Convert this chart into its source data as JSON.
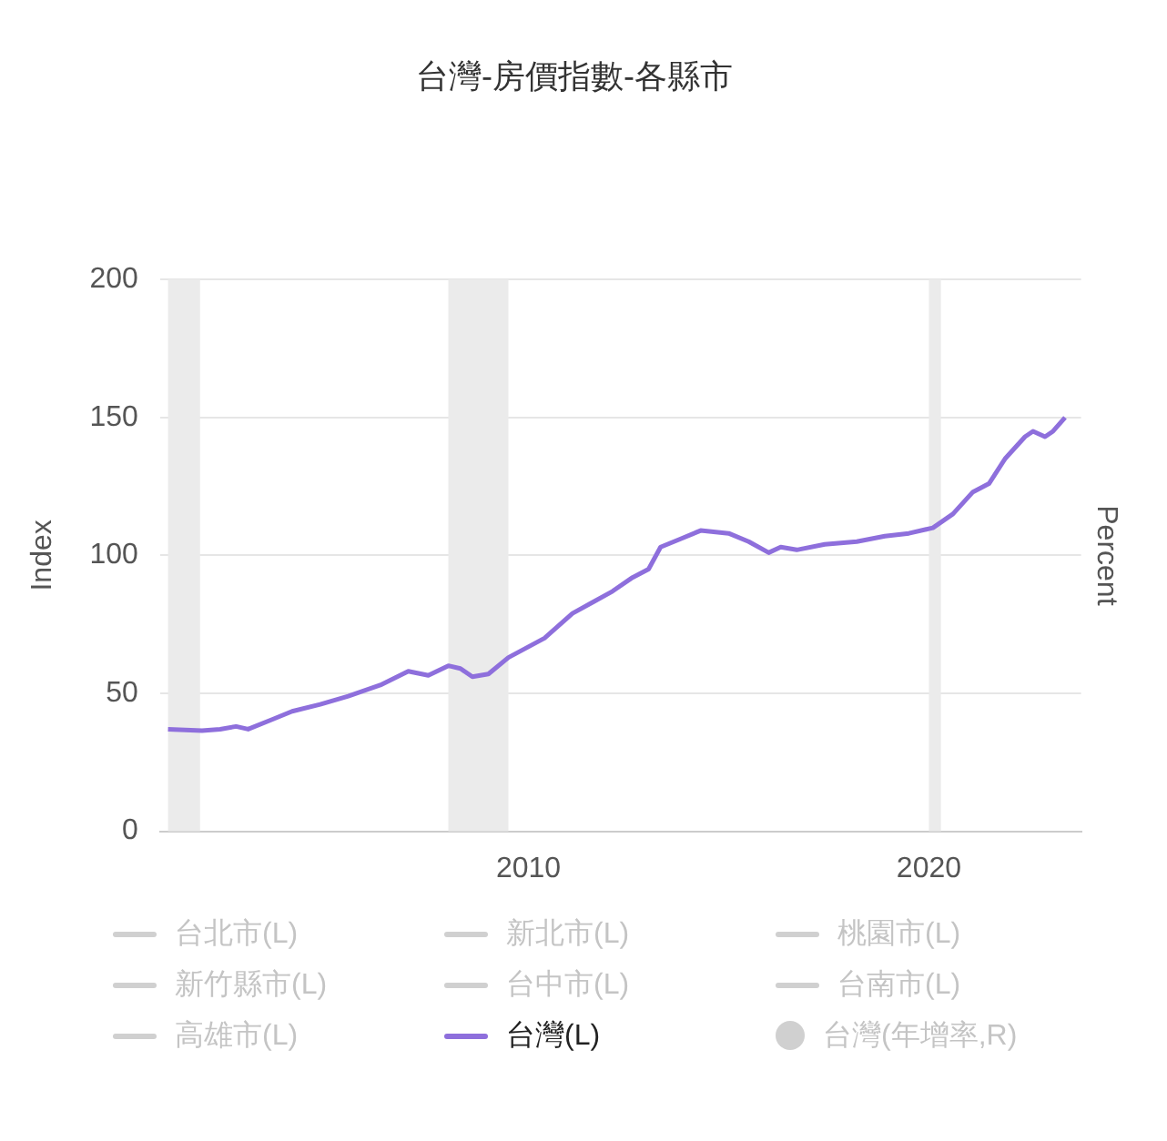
{
  "chart_data": {
    "type": "line",
    "title": "台灣-房價指數-各縣市",
    "xlabel": null,
    "ylabel": "Index",
    "y2label": "Percent",
    "xlim": [
      2000.8,
      2023.8
    ],
    "xticks": [
      2010,
      2020
    ],
    "ylim": [
      0,
      200
    ],
    "yticks": [
      0,
      50,
      100,
      150,
      200
    ],
    "grid": "y",
    "legend": "bottom",
    "marker": "none",
    "bands": [
      {
        "axis": "x",
        "from": 2001.0,
        "to": 2001.8,
        "color": "#ebebeb"
      },
      {
        "axis": "x",
        "from": 2008.0,
        "to": 2009.5,
        "color": "#ebebeb"
      },
      {
        "axis": "x",
        "from": 2020.0,
        "to": 2020.3,
        "color": "#ebebeb"
      }
    ],
    "series": [
      {
        "name": "台北市(L)",
        "color": "#d0d0d0"
      },
      {
        "name": "新北市(L)",
        "color": "#d0d0d0"
      },
      {
        "name": "桃園市(L)",
        "color": "#d0d0d0"
      },
      {
        "name": "新竹縣市(L)",
        "color": "#d0d0d0"
      },
      {
        "name": "台中市(L)",
        "color": "#d0d0d0"
      },
      {
        "name": "台南市(L)",
        "color": "#d0d0d0"
      },
      {
        "name": "高雄市(L)",
        "color": "#d0d0d0"
      },
      {
        "name": "台灣(L)",
        "color": "#8e6fdc",
        "x": [
          2001.0,
          2001.85,
          2002.3,
          2002.7,
          2003.0,
          2003.6,
          2004.1,
          2004.8,
          2005.5,
          2006.3,
          2007.0,
          2007.5,
          2008.0,
          2008.3,
          2008.6,
          2009.0,
          2009.5,
          2010.4,
          2011.1,
          2011.6,
          2012.1,
          2012.6,
          2013.0,
          2013.3,
          2013.8,
          2014.3,
          2015.0,
          2015.5,
          2016.0,
          2016.3,
          2016.7,
          2017.4,
          2018.2,
          2018.9,
          2019.5,
          2020.1,
          2020.6,
          2021.1,
          2021.5,
          2021.9,
          2022.4,
          2022.6,
          2022.9,
          2023.1,
          2023.4
        ],
        "values": [
          37,
          36.5,
          37,
          38,
          37,
          40.5,
          43.5,
          46,
          49,
          53,
          58,
          56.5,
          60,
          59,
          56,
          57,
          63,
          70,
          79,
          83,
          87,
          92,
          95,
          103,
          106,
          109,
          108,
          105,
          101,
          103,
          102,
          104,
          105,
          107,
          108,
          110,
          115,
          123,
          126,
          135,
          143,
          145,
          143,
          145,
          150
        ]
      },
      {
        "name": "台灣(年增率,R)",
        "type": "scatter",
        "marker": "circle",
        "color": "#d0d0d0"
      }
    ]
  }
}
